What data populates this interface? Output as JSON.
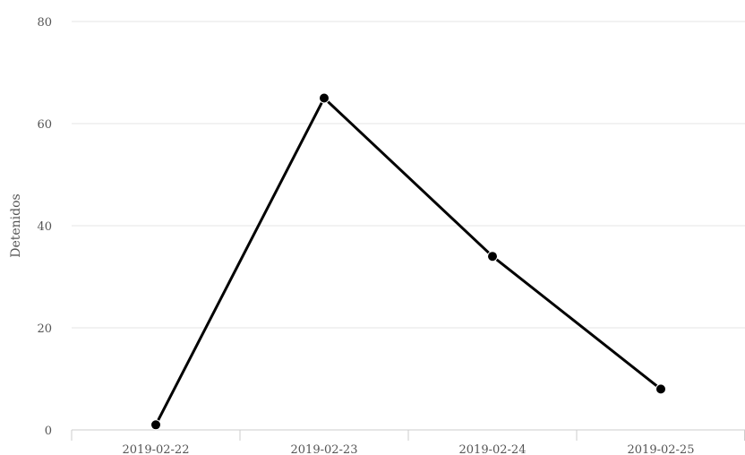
{
  "chart_data": {
    "type": "line",
    "title": "",
    "xlabel": "",
    "ylabel": "Detenidos",
    "categories": [
      "2019-02-22",
      "2019-02-23",
      "2019-02-24",
      "2019-02-25"
    ],
    "series": [
      {
        "values": [
          1,
          65,
          34,
          8
        ]
      }
    ],
    "yticks": [
      0,
      20,
      40,
      60,
      80
    ],
    "ylim": [
      0,
      80
    ],
    "grid": true,
    "legend": "none",
    "colors": {
      "line": "#000000",
      "marker": "#000000",
      "grid": "#e6e6e6",
      "text": "#555555"
    }
  }
}
